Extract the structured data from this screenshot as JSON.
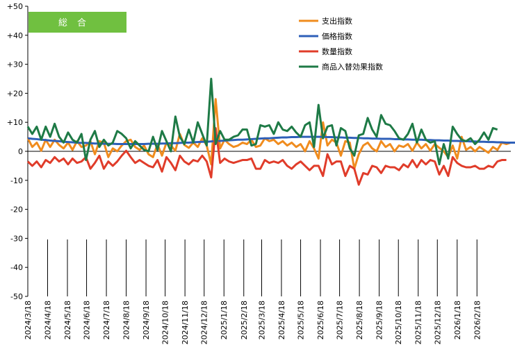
{
  "chart_data": {
    "type": "line",
    "title": "総合",
    "title_badge_color": "#70c040",
    "ylim": [
      -50,
      50
    ],
    "y_ticks": [
      "+50",
      "+40",
      "+30",
      "+20",
      "+10",
      "0",
      "-10",
      "-20",
      "-30",
      "-40",
      "-50"
    ],
    "y_tick_values": [
      50,
      40,
      30,
      20,
      10,
      0,
      -10,
      -20,
      -30,
      -40,
      -50
    ],
    "x_start": "2024/3/18",
    "x_step_days": 7,
    "x_labels": [
      "2024/3/18",
      "2024/4/18",
      "2024/5/18",
      "2024/6/18",
      "2024/7/18",
      "2024/8/18",
      "2024/9/18",
      "2024/10/18",
      "2024/11/18",
      "2024/12/18",
      "2025/1/18",
      "2025/2/18",
      "2025/3/18",
      "2025/4/18",
      "2025/5/18",
      "2025/6/18",
      "2025/7/18",
      "2025/8/18",
      "2025/9/18",
      "2025/10/18",
      "2025/11/18",
      "2025/12/18",
      "2026/1/18",
      "2026/2/18"
    ],
    "x_label_indices": [
      0,
      4.43,
      8.86,
      13.14,
      17.57,
      22,
      26.43,
      30.71,
      35.14,
      39.43,
      43.86,
      48.29,
      52.29,
      56.71,
      61,
      65.43,
      69.71,
      74.14,
      78.57,
      82.86,
      87.29,
      91.57,
      96,
      100.43
    ],
    "legend_position": "top-right",
    "series": [
      {
        "name": "支出指数",
        "color": "#f08c1e",
        "values": [
          4.5,
          1.5,
          3,
          0.2,
          4,
          1.5,
          4,
          2.2,
          1,
          3,
          0.5,
          3.5,
          1.5,
          2,
          3.5,
          -1,
          3.5,
          3,
          -2,
          1,
          0,
          2,
          3.5,
          4,
          1.5,
          0.5,
          2,
          -1,
          -2,
          2.5,
          -1.5,
          3,
          2,
          0.2,
          6,
          2.2,
          1.2,
          3,
          1.5,
          4.5,
          2,
          -4.5,
          18,
          1,
          4,
          2.5,
          1.5,
          2,
          3,
          2.5,
          4,
          1.5,
          2,
          4.5,
          3.5,
          4,
          2.5,
          3.5,
          2,
          3,
          1.5,
          2.5,
          0,
          3.5,
          1,
          -2.5,
          10,
          2,
          4,
          3,
          -1.5,
          3.5,
          3,
          -6,
          -1,
          2,
          3,
          1,
          0,
          3.5,
          1.5,
          2.5,
          0,
          2,
          1.5,
          2.5,
          0.2,
          3,
          1,
          2.5,
          0.2,
          2.5,
          1.2,
          0,
          -2,
          2,
          -2.5,
          5,
          0.5,
          1.5,
          0,
          1.5,
          0.5,
          -0.5,
          1.5,
          0.5,
          3,
          2.5,
          3
        ],
        "markers": false
      },
      {
        "name": "価格指数",
        "color": "#2e5fb8",
        "values": [
          4.5,
          4.3,
          4.2,
          4,
          3.9,
          3.7,
          3.6,
          3.5,
          3.3,
          3.2,
          3.1,
          3,
          2.9,
          2.9,
          2.8,
          2.7,
          2.7,
          2.6,
          2.6,
          2.6,
          2.5,
          2.5,
          2.5,
          2.5,
          2.5,
          2.5,
          2.5,
          2.6,
          2.6,
          2.6,
          2.7,
          2.7,
          2.8,
          2.8,
          2.9,
          3,
          3,
          3.1,
          3.2,
          3.3,
          3.3,
          3.4,
          3.5,
          3.6,
          3.7,
          3.8,
          3.9,
          4,
          4,
          4.1,
          4.2,
          4.3,
          4.4,
          4.5,
          4.5,
          4.6,
          4.7,
          4.8,
          4.8,
          4.9,
          4.9,
          5,
          5,
          5,
          5,
          5,
          5,
          4.9,
          4.9,
          4.8,
          4.8,
          4.7,
          4.7,
          4.6,
          4.6,
          4.5,
          4.5,
          4.4,
          4.4,
          4.3,
          4.3,
          4.3,
          4.2,
          4.2,
          4.1,
          4.1,
          4,
          4,
          4,
          3.9,
          3.9,
          3.8,
          3.8,
          3.7,
          3.7,
          3.6,
          3.6,
          3.5,
          3.5,
          3.4,
          3.4,
          3.3,
          3.3,
          3.2,
          3.2,
          3.1,
          3.1,
          3,
          3,
          3
        ],
        "markers": false
      },
      {
        "name": "数量指数",
        "color": "#e03c2a",
        "values": [
          -3.5,
          -5,
          -3.5,
          -5.5,
          -3,
          -4,
          -2,
          -3.5,
          -2.5,
          -4.5,
          -2.5,
          -4,
          -3.5,
          -2,
          -6,
          -4,
          -1.5,
          -6,
          -3.5,
          -5,
          -3.5,
          -1.5,
          0.2,
          -2,
          -4,
          -3,
          -4,
          -5,
          -5.5,
          -3,
          -7,
          -2,
          -4,
          -6.5,
          -1.5,
          -3.5,
          -4.5,
          -3,
          -3.5,
          -1.5,
          -3.5,
          -9,
          8,
          -4,
          -2.5,
          -3.5,
          -4,
          -3.5,
          -3,
          -3,
          -2.5,
          -6,
          -6,
          -3,
          -4,
          -3.5,
          -4,
          -3,
          -5,
          -6,
          -4.5,
          -3.5,
          -5,
          -6.5,
          -5,
          -5,
          -8.5,
          -1,
          -4.5,
          -3.5,
          -3.5,
          -8.5,
          -5,
          -6,
          -11.5,
          -7.5,
          -8,
          -5,
          -5.5,
          -7.5,
          -5,
          -5.5,
          -5.5,
          -6.5,
          -4.5,
          -5.5,
          -3,
          -5.5,
          -3,
          -4.5,
          -3,
          -3.5,
          -8,
          -5,
          -8.5,
          -2,
          -4,
          -5,
          -5.5,
          -5.5,
          -5,
          -6,
          -6,
          -5,
          -5.5,
          -3.5,
          -3,
          -3
        ],
        "markers": false
      },
      {
        "name": "商品入替効果指数",
        "color": "#1e7a46",
        "values": [
          8.5,
          6,
          8.5,
          4,
          8.5,
          5,
          9.5,
          5,
          3,
          6.5,
          4,
          3,
          6,
          -3,
          4,
          7,
          1.5,
          4,
          2,
          3,
          7,
          6,
          4.5,
          1,
          3.5,
          2,
          0.5,
          0,
          5,
          0.5,
          7,
          3.5,
          0,
          12,
          5,
          2.5,
          7.5,
          3,
          10,
          6,
          2,
          25,
          2.5,
          7,
          4,
          4,
          5,
          5.5,
          7.5,
          7.5,
          2,
          2.5,
          9,
          8.5,
          9,
          6,
          10,
          7.5,
          7,
          8.5,
          6.5,
          5,
          9,
          10,
          1.5,
          16,
          4.5,
          8.5,
          9,
          2,
          8,
          7,
          1,
          -1.5,
          5.5,
          6,
          11.5,
          7.5,
          5,
          12.5,
          9.5,
          9,
          7,
          4.5,
          4,
          6,
          9.5,
          3,
          7.5,
          4,
          3,
          3.5,
          -4.5,
          2.5,
          -2.5,
          8.5,
          6,
          4,
          3.5,
          4.5,
          2.5,
          4,
          6.5,
          4,
          8,
          7.5
        ],
        "markers": false
      }
    ]
  }
}
